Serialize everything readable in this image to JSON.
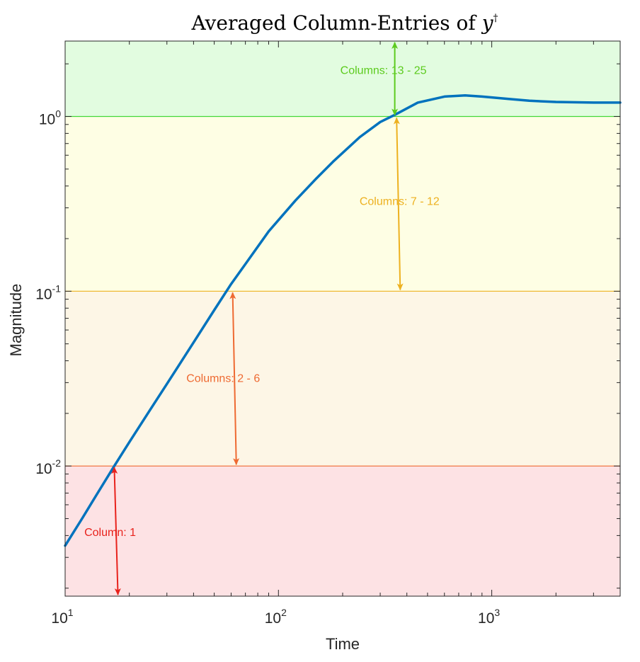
{
  "chart_data": {
    "type": "line",
    "title": "Averaged Column-Entries of ",
    "title_symbol": "y",
    "title_superscript": "†",
    "xlabel": "Time",
    "ylabel": "Magnitude",
    "xscale": "log",
    "yscale": "log",
    "xlim": [
      10,
      4000
    ],
    "ylim": [
      0.0018,
      2.7
    ],
    "grid": false,
    "x_ticks": [
      {
        "base": "10",
        "exp": "1",
        "value": 10
      },
      {
        "base": "10",
        "exp": "2",
        "value": 100
      },
      {
        "base": "10",
        "exp": "3",
        "value": 1000
      }
    ],
    "y_ticks": [
      {
        "base": "10",
        "exp": "-2",
        "value": 0.01
      },
      {
        "base": "10",
        "exp": "-1",
        "value": 0.1
      },
      {
        "base": "10",
        "exp": "0",
        "value": 1
      }
    ],
    "series": [
      {
        "color": "#0072BD",
        "x": [
          10,
          12,
          14,
          17,
          20,
          25,
          30,
          40,
          50,
          60,
          70,
          90,
          120,
          150,
          180,
          240,
          300,
          350,
          450,
          600,
          750,
          900,
          1200,
          1500,
          2000,
          3000,
          4000
        ],
        "y": [
          0.0035,
          0.005,
          0.0068,
          0.01,
          0.0137,
          0.0209,
          0.0295,
          0.0509,
          0.078,
          0.11,
          0.143,
          0.22,
          0.33,
          0.44,
          0.55,
          0.76,
          0.93,
          1.02,
          1.2,
          1.3,
          1.32,
          1.3,
          1.26,
          1.23,
          1.21,
          1.2,
          1.2
        ]
      }
    ],
    "bands": [
      {
        "y0": 0.0018,
        "y1": 0.01,
        "fill": "#FDE2E4",
        "line": "#E8221C",
        "label": "Column: 1",
        "label_color": "#E8221C",
        "arrow_x": 17,
        "label_x": 12.3,
        "label_y": 0.0042
      },
      {
        "y0": 0.01,
        "y1": 0.1,
        "fill": "#FDF6E6",
        "line": "#EE6A32",
        "label": "Columns: 2 - 6",
        "label_color": "#EE6A32",
        "arrow_x": 61,
        "label_x": 37,
        "label_y": 0.032
      },
      {
        "y0": 0.1,
        "y1": 1.0,
        "fill": "#FEFEE4",
        "line": "#EDB120",
        "label": "Columns: 7 - 12",
        "label_color": "#EDB120",
        "arrow_x": 358,
        "label_x": 240,
        "label_y": 0.33
      },
      {
        "y0": 1.0,
        "y1": 2.7,
        "fill": "#E2FCE0",
        "line": "#43D838",
        "label": "Columns: 13 - 25",
        "label_color": "#5CCB1E",
        "arrow_x": 351,
        "label_x": 195,
        "label_y": 1.85
      }
    ]
  }
}
